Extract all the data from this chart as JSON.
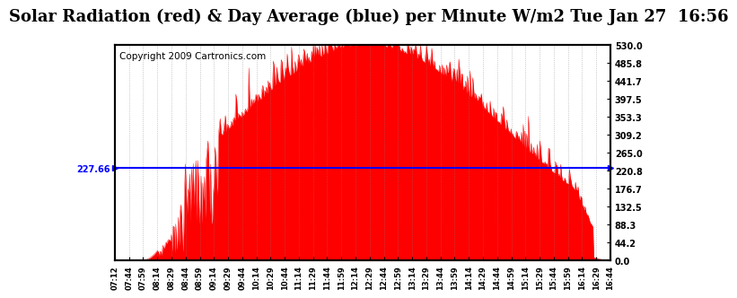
{
  "title": "Solar Radiation (red) & Day Average (blue) per Minute W/m2 Tue Jan 27  16:56",
  "copyright": "Copyright 2009 Cartronics.com",
  "avg_value": 227.66,
  "ymax": 530.0,
  "ymin": 0.0,
  "yticks_right": [
    530.0,
    485.8,
    441.7,
    397.5,
    353.3,
    309.2,
    265.0,
    220.8,
    176.7,
    132.5,
    88.3,
    44.2,
    0.0
  ],
  "xtick_labels": [
    "07:12",
    "07:44",
    "07:59",
    "08:14",
    "08:29",
    "08:44",
    "08:59",
    "09:14",
    "09:29",
    "09:44",
    "10:14",
    "10:29",
    "10:44",
    "11:14",
    "11:29",
    "11:44",
    "11:59",
    "12:14",
    "12:29",
    "12:44",
    "12:59",
    "13:14",
    "13:29",
    "13:44",
    "13:59",
    "14:14",
    "14:29",
    "14:44",
    "14:59",
    "15:14",
    "15:29",
    "15:44",
    "15:59",
    "16:14",
    "16:29",
    "16:44"
  ],
  "bar_color": "#FF0000",
  "line_color": "#0000FF",
  "bg_color": "#FFFFFF",
  "title_fontsize": 13,
  "copyright_fontsize": 7.5
}
